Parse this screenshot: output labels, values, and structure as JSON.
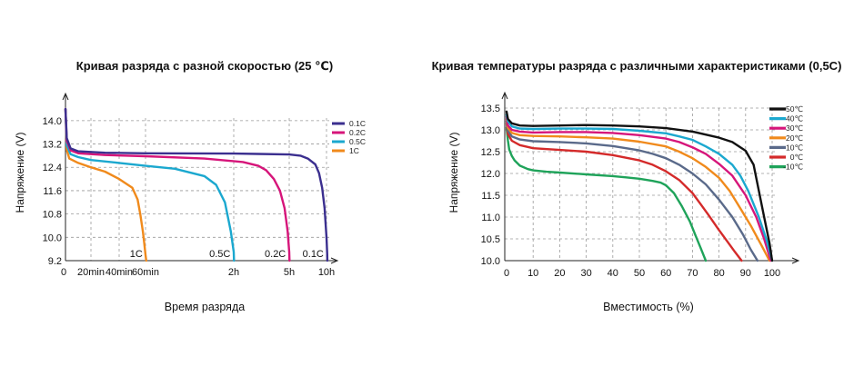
{
  "chart_data": [
    {
      "type": "line",
      "title": "Кривая разряда с разной скоростью (25 ℃)",
      "xlabel": "Время разряда",
      "ylabel": "Напряжение (V)",
      "yticks": [
        "14.0",
        "13.2",
        "12.4",
        "11.6",
        "10.8",
        "10.0",
        "9.2"
      ],
      "ylim": [
        9.2,
        14.6
      ],
      "xticks": [
        {
          "t": 0,
          "label": "0"
        },
        {
          "t": 20,
          "label": "20min"
        },
        {
          "t": 40,
          "label": "40min"
        },
        {
          "t": 60,
          "label": "60min"
        },
        {
          "t": 120,
          "label": "2h"
        },
        {
          "t": 300,
          "label": "5h"
        },
        {
          "t": 600,
          "label": "10h"
        }
      ],
      "x_scale": "piecewise (minutes)",
      "grid": true,
      "legend_position": "right",
      "series": [
        {
          "name": "0.1C",
          "color": "#3b2f8f",
          "end_label": "0.1C",
          "x": [
            0,
            1,
            4,
            10,
            30,
            60,
            120,
            200,
            300,
            390,
            450,
            510,
            540,
            565,
            585,
            600,
            605,
            606
          ],
          "y": [
            14.4,
            13.4,
            13.05,
            12.95,
            12.9,
            12.88,
            12.87,
            12.86,
            12.84,
            12.8,
            12.7,
            12.5,
            12.2,
            11.7,
            11.0,
            10.0,
            9.4,
            9.2
          ]
        },
        {
          "name": "0.2C",
          "color": "#d6157a",
          "end_label": "0.2C",
          "x": [
            0,
            1,
            4,
            10,
            30,
            60,
            100,
            150,
            200,
            225,
            250,
            270,
            285,
            295,
            300,
            302
          ],
          "y": [
            14.4,
            13.3,
            12.98,
            12.88,
            12.82,
            12.78,
            12.7,
            12.58,
            12.45,
            12.3,
            12.0,
            11.6,
            11.0,
            10.2,
            9.5,
            9.2
          ]
        },
        {
          "name": "0.5C",
          "color": "#1ba8cf",
          "end_label": "0.5C",
          "x": [
            0,
            1,
            4,
            10,
            20,
            40,
            60,
            80,
            100,
            108,
            114,
            118,
            120,
            121
          ],
          "y": [
            14.4,
            13.15,
            12.85,
            12.75,
            12.65,
            12.55,
            12.45,
            12.35,
            12.1,
            11.8,
            11.2,
            10.2,
            9.5,
            9.2
          ]
        },
        {
          "name": "1C",
          "color": "#f08a1c",
          "end_label": "1C",
          "x": [
            0,
            1,
            3,
            10,
            20,
            30,
            40,
            50,
            54,
            56,
            58,
            59,
            60,
            60.5
          ],
          "y": [
            14.4,
            13.0,
            12.7,
            12.55,
            12.4,
            12.25,
            12.0,
            11.7,
            11.3,
            10.8,
            10.2,
            9.8,
            9.4,
            9.2
          ]
        }
      ]
    },
    {
      "type": "line",
      "title": "Кривая температуры разряда с различными характеристиками (0,5С)",
      "xlabel": "Вместимость (%)",
      "ylabel": "Напряжение (V)",
      "yticks": [
        "13.5",
        "13.0",
        "12.5",
        "12.0",
        "11.5",
        "11.0",
        "10.5",
        "10.0"
      ],
      "ylim": [
        10.0,
        13.5
      ],
      "xticks": [
        "0",
        "10",
        "20",
        "30",
        "40",
        "50",
        "60",
        "70",
        "80",
        "90",
        "100"
      ],
      "xlim": [
        0,
        105
      ],
      "grid": true,
      "legend_position": "right",
      "series": [
        {
          "name": "50℃",
          "color": "#111111",
          "x": [
            0,
            0.5,
            2,
            5,
            10,
            20,
            30,
            40,
            50,
            60,
            70,
            80,
            85,
            90,
            93,
            95,
            97,
            99,
            100
          ],
          "y": [
            13.42,
            13.25,
            13.15,
            13.1,
            13.09,
            13.1,
            13.11,
            13.1,
            13.08,
            13.04,
            12.96,
            12.82,
            12.72,
            12.52,
            12.2,
            11.6,
            11.0,
            10.4,
            10.0
          ]
        },
        {
          "name": "40℃",
          "color": "#1ba8cf",
          "x": [
            0,
            0.5,
            2,
            5,
            10,
            20,
            30,
            40,
            50,
            60,
            65,
            70,
            75,
            80,
            85,
            88,
            91,
            95,
            98,
            100
          ],
          "y": [
            13.35,
            13.2,
            13.08,
            13.03,
            13.02,
            13.03,
            13.03,
            13.02,
            12.98,
            12.92,
            12.85,
            12.77,
            12.62,
            12.45,
            12.2,
            11.95,
            11.6,
            11.0,
            10.45,
            10.0
          ]
        },
        {
          "name": "30℃",
          "color": "#d6157a",
          "x": [
            0,
            0.5,
            2,
            5,
            10,
            20,
            30,
            40,
            50,
            60,
            65,
            70,
            75,
            80,
            85,
            90,
            94,
            97,
            99.5
          ],
          "y": [
            13.3,
            13.1,
            13.0,
            12.96,
            12.94,
            12.95,
            12.95,
            12.93,
            12.88,
            12.8,
            12.72,
            12.6,
            12.45,
            12.22,
            11.95,
            11.5,
            11.0,
            10.5,
            10.0
          ]
        },
        {
          "name": "20℃",
          "color": "#f08a1c",
          "x": [
            0,
            0.5,
            2,
            5,
            10,
            20,
            30,
            40,
            50,
            60,
            65,
            70,
            75,
            80,
            84,
            88,
            92,
            96,
            99
          ],
          "y": [
            13.25,
            13.05,
            12.93,
            12.88,
            12.86,
            12.85,
            12.83,
            12.8,
            12.73,
            12.62,
            12.5,
            12.35,
            12.15,
            11.9,
            11.6,
            11.2,
            10.8,
            10.35,
            10.0
          ]
        },
        {
          "name": "10℃",
          "color": "#5a6a8a",
          "x": [
            0,
            0.5,
            2,
            5,
            10,
            20,
            30,
            40,
            50,
            55,
            60,
            65,
            70,
            75,
            80,
            85,
            89,
            92,
            94.5
          ],
          "y": [
            13.2,
            12.98,
            12.85,
            12.78,
            12.74,
            12.72,
            12.69,
            12.63,
            12.53,
            12.45,
            12.35,
            12.2,
            12.0,
            11.75,
            11.4,
            11.0,
            10.6,
            10.25,
            10.0
          ]
        },
        {
          "name": "0℃",
          "color": "#d42a2a",
          "x": [
            0,
            0.5,
            2,
            5,
            10,
            20,
            30,
            40,
            50,
            55,
            60,
            65,
            70,
            73,
            76,
            80,
            83,
            86,
            88.5
          ],
          "y": [
            13.15,
            12.9,
            12.75,
            12.65,
            12.58,
            12.54,
            12.5,
            12.42,
            12.3,
            12.2,
            12.05,
            11.85,
            11.55,
            11.3,
            11.05,
            10.7,
            10.45,
            10.2,
            10.0
          ]
        },
        {
          "name": "-10℃",
          "color": "#1fa35a",
          "x": [
            0,
            0.5,
            1,
            2,
            3,
            5,
            8,
            10,
            15,
            20,
            30,
            40,
            45,
            50,
            55,
            58,
            60,
            63,
            66,
            69,
            71,
            73,
            75
          ],
          "y": [
            13.05,
            12.75,
            12.55,
            12.4,
            12.3,
            12.18,
            12.1,
            12.07,
            12.04,
            12.02,
            11.98,
            11.94,
            11.91,
            11.88,
            11.83,
            11.79,
            11.73,
            11.55,
            11.25,
            10.9,
            10.6,
            10.3,
            10.0
          ]
        }
      ]
    }
  ]
}
